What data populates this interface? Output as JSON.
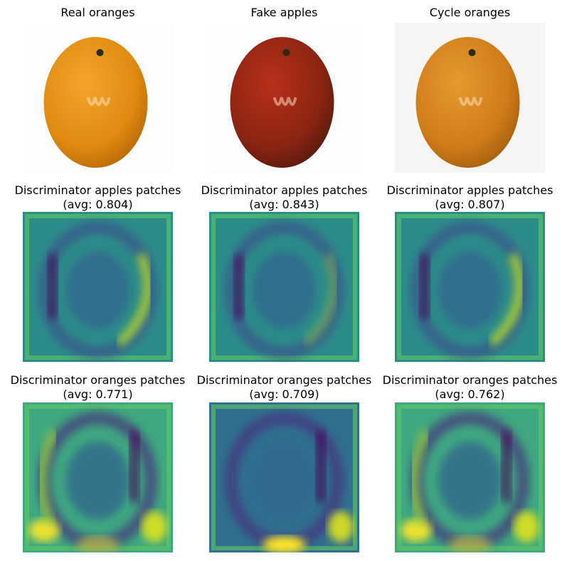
{
  "panels": [
    {
      "title": "Real oranges"
    },
    {
      "title": "Fake apples"
    },
    {
      "title": "Cycle oranges"
    },
    {
      "title": "Discriminator apples patches",
      "avg_label": "(avg: 0.804)"
    },
    {
      "title": "Discriminator apples patches",
      "avg_label": "(avg: 0.843)"
    },
    {
      "title": "Discriminator apples patches",
      "avg_label": "(avg: 0.807)"
    },
    {
      "title": "Discriminator oranges patches",
      "avg_label": "(avg: 0.771)"
    },
    {
      "title": "Discriminator oranges patches",
      "avg_label": "(avg: 0.709)"
    },
    {
      "title": "Discriminator oranges patches",
      "avg_label": "(avg: 0.762)"
    }
  ]
}
